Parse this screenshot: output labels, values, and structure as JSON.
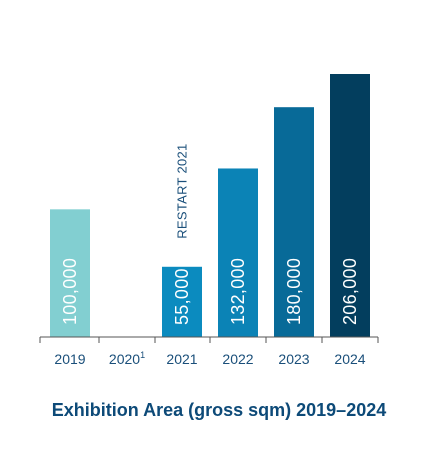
{
  "chart_data": {
    "type": "bar",
    "title": "Exhibition Area (gross sqm) 2019–2024",
    "xlabel": "",
    "ylabel": "",
    "ylim": [
      0,
      216000
    ],
    "grid": false,
    "categories": [
      "2019",
      "2020",
      "2021",
      "2022",
      "2023",
      "2024"
    ],
    "category_footnotes": [
      "",
      "1",
      "",
      "",
      "",
      ""
    ],
    "values": [
      100000,
      null,
      55000,
      132000,
      180000,
      206000
    ],
    "data_labels": [
      "100,000",
      "",
      "55,000",
      "132,000",
      "180,000",
      "206,000"
    ],
    "bar_colors": [
      "#82cfd1",
      "#82cfd1",
      "#0b8bbf",
      "#0b83b6",
      "#086a98",
      "#033e5e"
    ],
    "annotations": [
      {
        "category": "2021",
        "text": "RESTART 2021"
      }
    ],
    "label_color": "#1a4f7a",
    "title_color": "#0d4a78",
    "axis_color": "#555555"
  }
}
